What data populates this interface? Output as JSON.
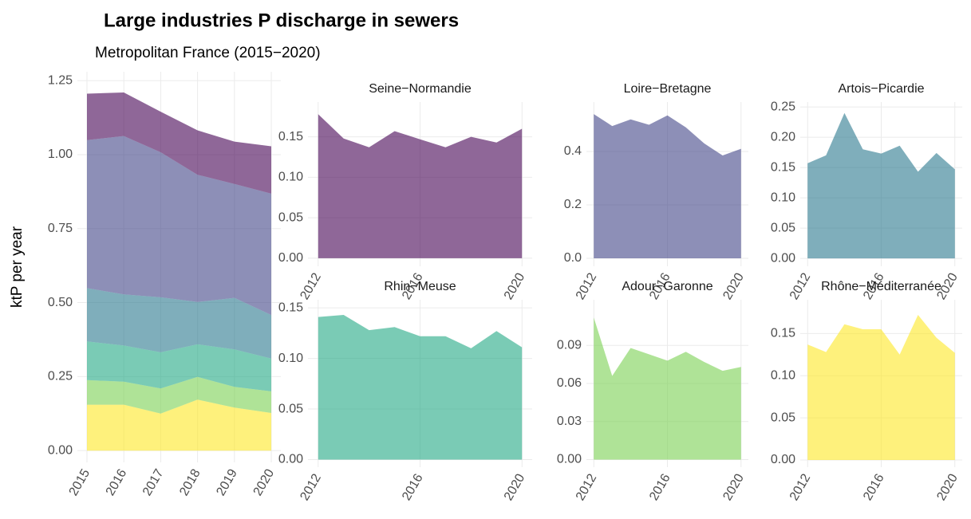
{
  "chart_data": [
    {
      "type": "area",
      "stacked": true,
      "title": "Large industries P discharge in sewers",
      "subtitle": "Metropolitan France (2015−2020)",
      "y_label": "ktP per year",
      "x": [
        2015,
        2016,
        2017,
        2018,
        2019,
        2020
      ],
      "xlim": [
        2014.74,
        2020.26
      ],
      "xticks": [
        2015,
        2016,
        2017,
        2018,
        2019,
        2020
      ],
      "ylim": [
        -0.04,
        1.28
      ],
      "yticks": [
        {
          "value": 0,
          "label": "0.00"
        },
        0.25,
        {
          "value": 0.5,
          "label": "0.50"
        },
        0.75,
        {
          "value": 1,
          "label": "1.00"
        },
        1.25
      ],
      "series": [
        {
          "color": "#fde725",
          "values": [
            0.155,
            0.155,
            0.125,
            0.172,
            0.145,
            0.127
          ]
        },
        {
          "color": "#7ad151",
          "values": [
            0.083,
            0.078,
            0.085,
            0.077,
            0.07,
            0.073
          ]
        },
        {
          "color": "#22a884",
          "values": [
            0.131,
            0.122,
            0.122,
            0.11,
            0.127,
            0.111
          ]
        },
        {
          "color": "#2a788e",
          "values": [
            0.18,
            0.173,
            0.186,
            0.143,
            0.174,
            0.147
          ]
        },
        {
          "color": "#414487",
          "values": [
            0.5,
            0.535,
            0.49,
            0.43,
            0.385,
            0.41
          ]
        },
        {
          "color": "#440154",
          "values": [
            0.157,
            0.147,
            0.137,
            0.15,
            0.143,
            0.16
          ]
        }
      ]
    },
    {
      "type": "area",
      "title": "Seine−Normandie",
      "color": "#440154",
      "x": [
        2012,
        2013,
        2014,
        2015,
        2016,
        2017,
        2018,
        2019,
        2020
      ],
      "values": [
        0.178,
        0.148,
        0.137,
        0.157,
        0.147,
        0.137,
        0.15,
        0.143,
        0.16
      ],
      "xlim": [
        2011.6,
        2020.4
      ],
      "xticks": [
        2012,
        2016,
        2020
      ],
      "ylim": [
        -0.01,
        0.193
      ],
      "yticks": [
        {
          "value": 0,
          "label": "0.00"
        },
        0.05,
        {
          "value": 0.1,
          "label": "0.10"
        },
        0.15
      ]
    },
    {
      "type": "area",
      "title": "Loire−Bretagne",
      "color": "#414487",
      "x": [
        2012,
        2013,
        2014,
        2015,
        2016,
        2017,
        2018,
        2019,
        2020
      ],
      "values": [
        0.54,
        0.495,
        0.52,
        0.5,
        0.535,
        0.49,
        0.43,
        0.385,
        0.41
      ],
      "xlim": [
        2011.6,
        2020.4
      ],
      "xticks": [
        2012,
        2016,
        2020
      ],
      "ylim": [
        -0.03,
        0.585
      ],
      "yticks": [
        {
          "value": 0,
          "label": "0.0"
        },
        0.2,
        0.4
      ]
    },
    {
      "type": "area",
      "title": "Artois−Picardie",
      "color": "#2a788e",
      "x": [
        2012,
        2013,
        2014,
        2015,
        2016,
        2017,
        2018,
        2019,
        2020
      ],
      "values": [
        0.157,
        0.17,
        0.24,
        0.18,
        0.173,
        0.186,
        0.143,
        0.174,
        0.147
      ],
      "xlim": [
        2011.6,
        2020.4
      ],
      "xticks": [
        2012,
        2016,
        2020
      ],
      "ylim": [
        -0.013,
        0.258
      ],
      "yticks": [
        {
          "value": 0,
          "label": "0.00"
        },
        0.05,
        {
          "value": 0.1,
          "label": "0.10"
        },
        0.15,
        {
          "value": 0.2,
          "label": "0.20"
        },
        0.25
      ]
    },
    {
      "type": "area",
      "title": "Rhin−Meuse",
      "color": "#22a884",
      "x": [
        2012,
        2013,
        2014,
        2015,
        2016,
        2017,
        2018,
        2019,
        2020
      ],
      "values": [
        0.141,
        0.143,
        0.128,
        0.131,
        0.122,
        0.122,
        0.11,
        0.127,
        0.111
      ],
      "xlim": [
        2011.6,
        2020.4
      ],
      "xticks": [
        2012,
        2016,
        2020
      ],
      "ylim": [
        -0.0075,
        0.158
      ],
      "yticks": [
        {
          "value": 0,
          "label": "0.00"
        },
        0.05,
        {
          "value": 0.1,
          "label": "0.10"
        },
        0.15
      ]
    },
    {
      "type": "area",
      "title": "Adour−Garonne",
      "color": "#7ad151",
      "x": [
        2012,
        2013,
        2014,
        2015,
        2016,
        2017,
        2018,
        2019,
        2020
      ],
      "values": [
        0.112,
        0.066,
        0.088,
        0.083,
        0.078,
        0.085,
        0.077,
        0.07,
        0.073
      ],
      "xlim": [
        2011.6,
        2020.4
      ],
      "xticks": [
        2012,
        2016,
        2020
      ],
      "ylim": [
        -0.006,
        0.126
      ],
      "yticks": [
        {
          "value": 0,
          "label": "0.00"
        },
        0.03,
        0.06,
        0.09
      ]
    },
    {
      "type": "area",
      "title": "Rhône−Méditerranée",
      "color": "#fde725",
      "x": [
        2012,
        2013,
        2014,
        2015,
        2016,
        2017,
        2018,
        2019,
        2020
      ],
      "values": [
        0.137,
        0.128,
        0.161,
        0.155,
        0.155,
        0.125,
        0.172,
        0.145,
        0.127
      ],
      "xlim": [
        2011.6,
        2020.4
      ],
      "xticks": [
        2012,
        2016,
        2020
      ],
      "ylim": [
        -0.0085,
        0.19
      ],
      "yticks": [
        {
          "value": 0,
          "label": "0.00"
        },
        0.05,
        {
          "value": 0.1,
          "label": "0.10"
        },
        0.15
      ]
    }
  ]
}
